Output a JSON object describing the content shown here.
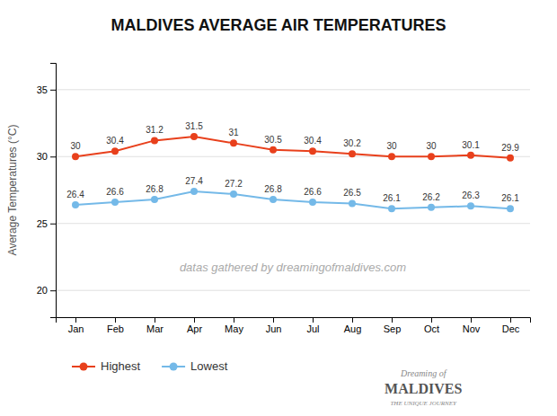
{
  "chart_data": {
    "type": "line",
    "title": "MALDIVES AVERAGE AIR TEMPERATURES",
    "y_label": "Average Temperatures (°C)",
    "categories": [
      "Jan",
      "Feb",
      "Mar",
      "Apr",
      "May",
      "Jun",
      "Jul",
      "Aug",
      "Sep",
      "Oct",
      "Nov",
      "Dec"
    ],
    "series": [
      {
        "name": "Highest",
        "color": "#e8401c",
        "marker": "circle",
        "values": [
          30,
          30.4,
          31.2,
          31.5,
          31,
          30.5,
          30.4,
          30.2,
          30,
          30,
          30.1,
          29.9
        ]
      },
      {
        "name": "Lowest",
        "color": "#74b9e8",
        "marker": "circle",
        "values": [
          26.4,
          26.6,
          26.8,
          27.4,
          27.2,
          26.8,
          26.6,
          26.5,
          26.1,
          26.2,
          26.3,
          26.1
        ]
      }
    ],
    "ylim": [
      18,
      37
    ],
    "yticks": [
      20,
      25,
      30,
      35
    ],
    "grid": true,
    "legend": "bottom",
    "data_labels": true,
    "annotations": [
      "datas gathered by dreamingofmaldives.com",
      "Dreaming of",
      "MALDIVES",
      "THE UNIQUE JOURNEY"
    ]
  }
}
